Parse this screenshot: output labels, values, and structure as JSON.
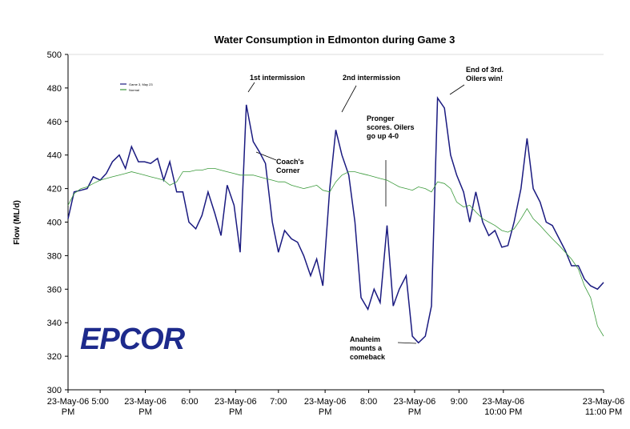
{
  "chart_data": {
    "type": "line",
    "title": "Water Consumption in Edmonton during Game 3",
    "y_label": "Flow (ML/d)",
    "logo": "EPCOR",
    "annotations": [
      "1st intermission",
      "2nd intermission",
      "Pronger scores. Oilers go up 4-0",
      "Coach's Corner",
      "End of 3rd. Oilers win!",
      "Anaheim mounts a comeback"
    ],
    "x": [
      16,
      16.08,
      16.17,
      16.25,
      16.33,
      16.42,
      16.5,
      16.58,
      16.67,
      16.75,
      16.83,
      16.92,
      17,
      17.08,
      17.17,
      17.25,
      17.33,
      17.42,
      17.5,
      17.58,
      17.67,
      17.75,
      17.83,
      17.92,
      18,
      18.08,
      18.17,
      18.25,
      18.33,
      18.42,
      18.5,
      18.58,
      18.67,
      18.75,
      18.83,
      18.92,
      19,
      19.08,
      19.17,
      19.25,
      19.33,
      19.42,
      19.5,
      19.58,
      19.67,
      19.75,
      19.83,
      19.92,
      20,
      20.08,
      20.17,
      20.25,
      20.33,
      20.42,
      20.5,
      20.58,
      20.67,
      20.75,
      20.83,
      20.92,
      21,
      21.08,
      21.17,
      21.25,
      21.33,
      21.42,
      21.5,
      21.58,
      21.67,
      21.75,
      21.83,
      21.92,
      22,
      22.08,
      22.17,
      22.25,
      22.33,
      22.42,
      22.5,
      22.58,
      22.67,
      22.75,
      22.83,
      22.92,
      23
    ],
    "series": [
      {
        "name": "Game 3, May 23",
        "color": "#1a1a80",
        "values": [
          402,
          418,
          419,
          420,
          427,
          425,
          429,
          436,
          440,
          432,
          445,
          436,
          436,
          435,
          438,
          425,
          436,
          418,
          418,
          400,
          396,
          404,
          418,
          405,
          392,
          422,
          410,
          382,
          470,
          448,
          442,
          435,
          400,
          382,
          395,
          390,
          388,
          380,
          368,
          378,
          362,
          420,
          455,
          440,
          428,
          400,
          355,
          348,
          360,
          352,
          398,
          350,
          360,
          368,
          332,
          328,
          332,
          350,
          474,
          468,
          440,
          428,
          418,
          400,
          418,
          400,
          392,
          395,
          385,
          386,
          400,
          420,
          450,
          420,
          412,
          400,
          398,
          390,
          383,
          374,
          374,
          366,
          362,
          360,
          364
        ]
      },
      {
        "name": "Normal",
        "color": "#3a9a3a",
        "values": [
          410,
          417,
          420,
          421,
          423,
          425,
          426,
          427,
          428,
          429,
          430,
          429,
          428,
          427,
          426,
          425,
          422,
          424,
          430,
          430,
          431,
          431,
          432,
          432,
          431,
          430,
          429,
          428,
          428,
          428,
          427,
          426,
          425,
          424,
          424,
          422,
          421,
          420,
          421,
          422,
          419,
          418,
          424,
          428,
          430,
          430,
          429,
          428,
          427,
          426,
          425,
          423,
          421,
          420,
          419,
          421,
          420,
          418,
          424,
          423,
          420,
          412,
          409,
          410,
          406,
          402,
          400,
          398,
          395,
          394,
          396,
          402,
          408,
          402,
          398,
          394,
          390,
          386,
          382,
          378,
          372,
          362,
          355,
          338,
          332
        ]
      }
    ],
    "xlim": [
      16,
      23
    ],
    "xticks": [
      {
        "value": 16,
        "label": "23-May-06\nPM"
      },
      {
        "value": 16.42,
        "label": "5:00"
      },
      {
        "value": 17.01,
        "label": "23-May-06\nPM"
      },
      {
        "value": 17.59,
        "label": "6:00"
      },
      {
        "value": 18.19,
        "label": "23-May-06\nPM"
      },
      {
        "value": 18.75,
        "label": "7:00"
      },
      {
        "value": 19.36,
        "label": "23-May-06\nPM"
      },
      {
        "value": 19.93,
        "label": "8:00"
      },
      {
        "value": 20.53,
        "label": "23-May-06\nPM"
      },
      {
        "value": 21.11,
        "label": "9:00"
      },
      {
        "value": 21.69,
        "label": "23-May-06\n10:00 PM"
      },
      {
        "value": 23,
        "label": "23-May-06\n11:00 PM"
      }
    ],
    "ylim": [
      300,
      500
    ],
    "yticks": [
      300,
      320,
      340,
      360,
      380,
      400,
      420,
      440,
      460,
      480,
      500
    ],
    "grid": false
  }
}
